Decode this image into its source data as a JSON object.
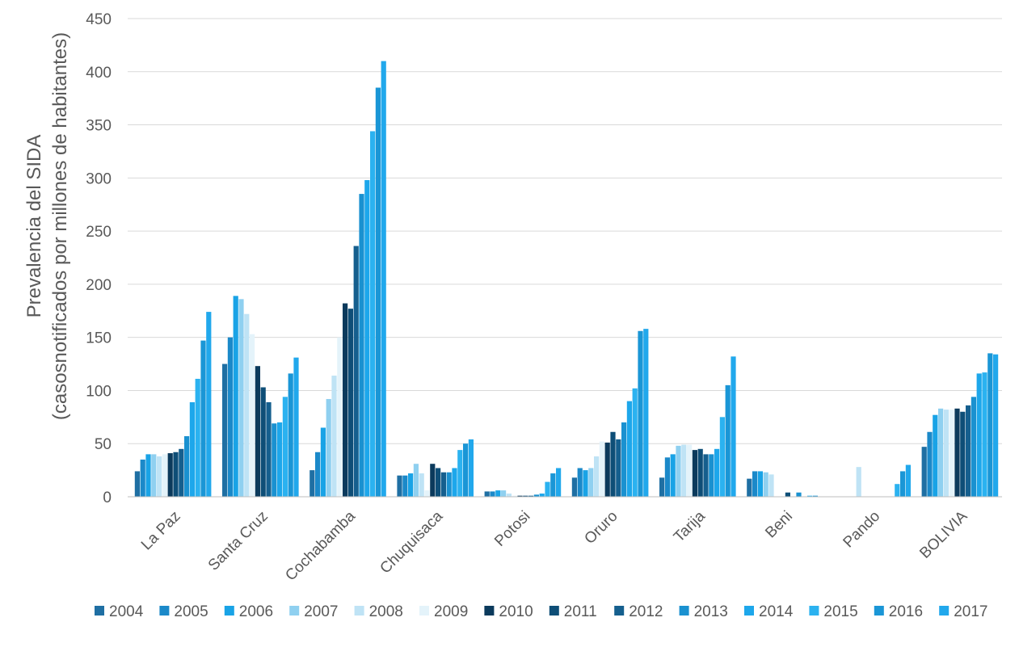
{
  "chart_data": {
    "type": "bar",
    "title": "",
    "ylabel_lines": [
      "Prevalencia del SIDA",
      "(casosnotificados por millones de habitantes)"
    ],
    "xlabel": "",
    "ylim": [
      0,
      450
    ],
    "yticks": [
      0,
      50,
      100,
      150,
      200,
      250,
      300,
      350,
      400,
      450
    ],
    "grid": true,
    "legend_position": "bottom",
    "categories": [
      "La Paz",
      "Santa Cruz",
      "Cochabamba",
      "Chuquisaca",
      "Potosi",
      "Oruro",
      "Tarija",
      "Beni",
      "Pando",
      "BOLIVIA"
    ],
    "series": [
      {
        "name": "2004",
        "color": "#1f6fa3",
        "values": [
          24,
          125,
          25,
          20,
          5,
          18,
          18,
          17,
          0,
          47
        ]
      },
      {
        "name": "2005",
        "color": "#1b89c9",
        "values": [
          35,
          150,
          42,
          20,
          5,
          27,
          37,
          24,
          0,
          61
        ]
      },
      {
        "name": "2006",
        "color": "#19a3e6",
        "values": [
          40,
          189,
          65,
          22,
          6,
          25,
          40,
          24,
          0,
          77
        ]
      },
      {
        "name": "2007",
        "color": "#8fd0f0",
        "values": [
          40,
          186,
          92,
          31,
          6,
          27,
          48,
          23,
          0,
          83
        ]
      },
      {
        "name": "2008",
        "color": "#bfe3f5",
        "values": [
          38,
          172,
          114,
          22,
          3,
          38,
          49,
          21,
          28,
          82
        ]
      },
      {
        "name": "2009",
        "color": "#e4f3fa",
        "values": [
          40,
          153,
          150,
          6,
          1,
          52,
          49,
          0,
          0,
          82
        ]
      },
      {
        "name": "2010",
        "color": "#0b3a5c",
        "values": [
          41,
          123,
          182,
          31,
          1,
          51,
          44,
          0,
          0,
          83
        ]
      },
      {
        "name": "2011",
        "color": "#0e4e77",
        "values": [
          42,
          103,
          177,
          27,
          1,
          61,
          45,
          4,
          0,
          80
        ]
      },
      {
        "name": "2012",
        "color": "#155f8e",
        "values": [
          45,
          89,
          236,
          23,
          1,
          54,
          40,
          0,
          0,
          86
        ]
      },
      {
        "name": "2013",
        "color": "#1a91d0",
        "values": [
          57,
          69,
          285,
          23,
          2,
          70,
          40,
          4,
          0,
          94
        ]
      },
      {
        "name": "2014",
        "color": "#1da7eb",
        "values": [
          89,
          70,
          298,
          27,
          3,
          90,
          45,
          0,
          0,
          116
        ]
      },
      {
        "name": "2015",
        "color": "#2bb2f0",
        "values": [
          111,
          94,
          344,
          44,
          14,
          102,
          75,
          1,
          12,
          117
        ]
      },
      {
        "name": "2016",
        "color": "#1a96d6",
        "values": [
          147,
          116,
          385,
          50,
          22,
          156,
          105,
          1,
          24,
          135
        ]
      },
      {
        "name": "2017",
        "color": "#21a8ec",
        "values": [
          174,
          131,
          410,
          54,
          27,
          158,
          132,
          0,
          30,
          134
        ]
      }
    ]
  }
}
